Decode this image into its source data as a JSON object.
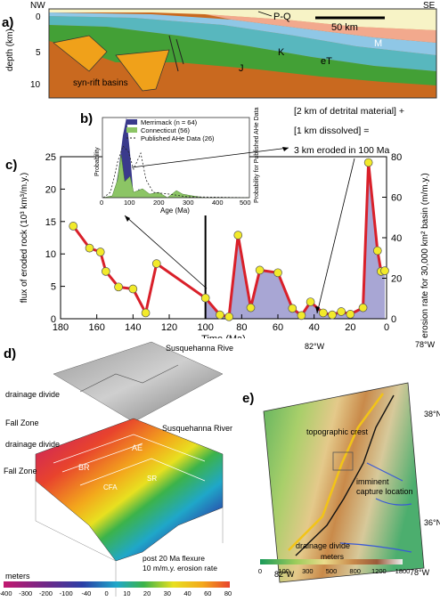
{
  "panel_a": {
    "label": "a)",
    "corner_left": "NW",
    "corner_right": "SE",
    "ylabel": "depth (km)",
    "yticks": [
      "0",
      "5",
      "10"
    ],
    "scale_label": "50 km",
    "unit_labels": {
      "pq": "P-Q",
      "m": "M",
      "k": "K",
      "et": "eT",
      "j": "J"
    },
    "annotation": "syn-rift basins",
    "colors": {
      "pq": "#f7f3c6",
      "m": "#f2a98d",
      "k": "#8fc7e6",
      "et": "#58b7be",
      "j": "#43a036",
      "basement": "#c9691f",
      "basin": "#f0a11a"
    }
  },
  "panel_b": {
    "label": "b)",
    "legend": [
      "Merrimack (n = 64)",
      "Connecticut (56)",
      "Published AHe Data (26)"
    ],
    "ylabel_left": "Probability",
    "ylabel_right": "Probability for Published AHe Data",
    "xlabel": "Age (Ma)",
    "xticks": [
      "0",
      "100",
      "200",
      "300",
      "400",
      "500"
    ],
    "colors": {
      "merrimack": "#3a3a8c",
      "connecticut": "#8cc565"
    }
  },
  "equation": {
    "line1": "[2 km of detrital material] +",
    "line2": "[1 km dissolved] =",
    "line3": "3 km eroded in 100 Ma"
  },
  "panel_c": {
    "label": "c)",
    "chart_data": {
      "type": "line",
      "xlabel": "Time (Ma)",
      "ylabel_left": "flux of eroded rock (10³ km³/m.y.)",
      "ylabel_right": "erosion rate for 30,000 km² basin (m/m.y.)",
      "xlim": [
        180,
        0
      ],
      "ylim_left": [
        0,
        25
      ],
      "ylim_right": [
        0,
        80
      ],
      "xticks": [
        180,
        160,
        140,
        120,
        100,
        80,
        60,
        40,
        20,
        0
      ],
      "yticks_left": [
        0,
        5,
        10,
        15,
        20,
        25
      ],
      "yticks_right": [
        0,
        20,
        40,
        60,
        80
      ],
      "boundary_time": 100,
      "series": [
        {
          "x": [
            173,
            164,
            158,
            155,
            148,
            140,
            133,
            127,
            100,
            92,
            87,
            82,
            75,
            70,
            60,
            52,
            47,
            42,
            35,
            30,
            25,
            20,
            13,
            10,
            5,
            3,
            1
          ],
          "y": [
            14.3,
            10.9,
            10.3,
            7.3,
            4.9,
            4.6,
            0.9,
            8.5,
            3.2,
            0.6,
            0.3,
            12.9,
            1.7,
            7.5,
            7.1,
            1.6,
            0.5,
            2.6,
            0.9,
            0.6,
            1.1,
            0.7,
            1.7,
            24.1,
            10.5,
            7.3,
            7.4
          ]
        }
      ],
      "colors": {
        "line": "#d9202a",
        "fill": "#a8a6d4",
        "marker": "#f2ea2a"
      }
    }
  },
  "panel_d": {
    "label": "d)",
    "labels_top": {
      "river": "Susquehanna River",
      "divide": "drainage divide",
      "fall": "Fall Zone"
    },
    "labels_bottom": {
      "river": "Susquehanna River",
      "divide": "drainage divide",
      "fall": "Fall Zone",
      "ae": "AE",
      "br": "BR",
      "cfa": "CFA",
      "sr": "SR"
    },
    "note_line1": "post 20 Ma flexure",
    "note_line2": "10 m/m.y. erosion rate",
    "scale_title": "meters",
    "scale_ticks": [
      "-400",
      "-300",
      "-200",
      "-100",
      "-40",
      "0",
      "10",
      "20",
      "30",
      "40",
      "60",
      "80"
    ]
  },
  "panel_e": {
    "label": "e)",
    "lon_top": [
      "82°W",
      "78°W"
    ],
    "lon_bottom": [
      "82°W",
      "78°W"
    ],
    "lat": [
      "38°N",
      "36°N"
    ],
    "labels": {
      "crest": "topographic crest",
      "capture_1": "imminent",
      "capture_2": "capture location",
      "divide": "drainage divide"
    },
    "scale_title": "meters",
    "scale_ticks": [
      "0",
      "100",
      "300",
      "500",
      "800",
      "1200",
      "1800"
    ]
  }
}
